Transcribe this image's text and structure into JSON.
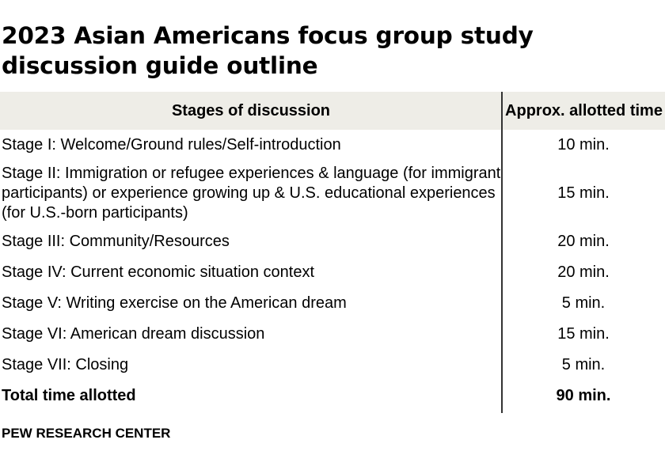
{
  "title": "2023 Asian Americans focus group study discussion guide outline",
  "table": {
    "headers": {
      "stage": "Stages of discussion",
      "time": "Approx. allotted time"
    },
    "rows": [
      {
        "stage": "Stage I: Welcome/Ground rules/Self-introduction",
        "time": "10 min."
      },
      {
        "stage": "Stage II: Immigration or refugee experiences & language (for immigrant participants) or experience growing up & U.S. educational experiences (for U.S.-born participants)",
        "time": "15 min."
      },
      {
        "stage": "Stage III: Community/Resources",
        "time": "20 min."
      },
      {
        "stage": "Stage IV: Current economic situation context",
        "time": "20 min."
      },
      {
        "stage": "Stage V: Writing exercise on the American dream",
        "time": "5 min."
      },
      {
        "stage": "Stage VI: American dream discussion",
        "time": "15 min."
      },
      {
        "stage": "Stage VII: Closing",
        "time": "5 min."
      }
    ],
    "total": {
      "label": "Total time allotted",
      "time": "90 min."
    }
  },
  "source": "PEW RESEARCH CENTER"
}
